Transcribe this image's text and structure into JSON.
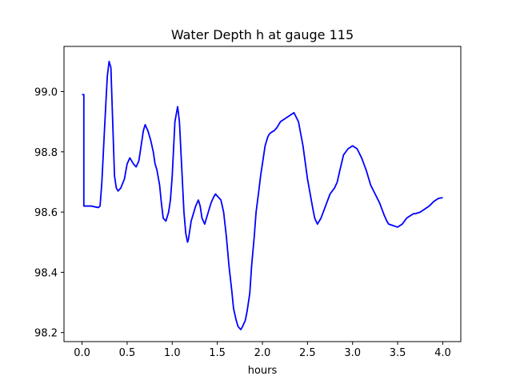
{
  "chart_data": {
    "type": "line",
    "title": "Water Depth h at gauge 115",
    "xlabel": "hours",
    "ylabel": "",
    "xlim": [
      -0.2,
      4.2
    ],
    "ylim": [
      98.17,
      99.15
    ],
    "grid": false,
    "legend": "none",
    "xticks": [
      0.0,
      0.5,
      1.0,
      1.5,
      2.0,
      2.5,
      3.0,
      3.5,
      4.0
    ],
    "xtick_labels": [
      "0.0",
      "0.5",
      "1.0",
      "1.5",
      "2.0",
      "2.5",
      "3.0",
      "3.5",
      "4.0"
    ],
    "yticks": [
      98.2,
      98.4,
      98.6,
      98.8,
      99.0
    ],
    "ytick_labels": [
      "98.2",
      "98.4",
      "98.6",
      "98.8",
      "99.0"
    ],
    "series": [
      {
        "color": "#0000ff",
        "x": [
          0.0,
          0.02,
          0.02,
          0.1,
          0.18,
          0.2,
          0.22,
          0.25,
          0.28,
          0.3,
          0.32,
          0.34,
          0.36,
          0.38,
          0.4,
          0.43,
          0.47,
          0.5,
          0.53,
          0.57,
          0.6,
          0.63,
          0.66,
          0.68,
          0.7,
          0.73,
          0.76,
          0.79,
          0.81,
          0.83,
          0.86,
          0.88,
          0.9,
          0.93,
          0.96,
          0.98,
          1.0,
          1.03,
          1.06,
          1.08,
          1.1,
          1.13,
          1.15,
          1.17,
          1.18,
          1.19,
          1.21,
          1.23,
          1.26,
          1.29,
          1.31,
          1.33,
          1.36,
          1.39,
          1.43,
          1.46,
          1.48,
          1.51,
          1.54,
          1.57,
          1.6,
          1.63,
          1.66,
          1.68,
          1.71,
          1.73,
          1.76,
          1.78,
          1.81,
          1.83,
          1.86,
          1.88,
          1.91,
          1.93,
          1.96,
          1.98,
          2.01,
          2.03,
          2.06,
          2.08,
          2.1,
          2.13,
          2.16,
          2.2,
          2.25,
          2.3,
          2.35,
          2.4,
          2.45,
          2.5,
          2.53,
          2.56,
          2.58,
          2.61,
          2.65,
          2.7,
          2.75,
          2.8,
          2.83,
          2.86,
          2.9,
          2.95,
          3.0,
          3.05,
          3.1,
          3.15,
          3.18,
          3.2,
          3.25,
          3.3,
          3.35,
          3.38,
          3.4,
          3.45,
          3.5,
          3.55,
          3.6,
          3.65,
          3.68,
          3.7,
          3.75,
          3.8,
          3.85,
          3.9,
          3.95,
          4.0
        ],
        "y": [
          98.99,
          98.99,
          98.62,
          98.62,
          98.615,
          98.62,
          98.7,
          98.88,
          99.05,
          99.1,
          99.08,
          98.9,
          98.72,
          98.68,
          98.67,
          98.68,
          98.71,
          98.76,
          98.78,
          98.76,
          98.75,
          98.77,
          98.83,
          98.87,
          98.89,
          98.87,
          98.84,
          98.8,
          98.76,
          98.74,
          98.69,
          98.63,
          98.58,
          98.57,
          98.6,
          98.64,
          98.72,
          98.9,
          98.95,
          98.9,
          98.78,
          98.6,
          98.53,
          98.5,
          98.51,
          98.53,
          98.57,
          98.59,
          98.62,
          98.64,
          98.62,
          98.58,
          98.56,
          98.59,
          98.63,
          98.65,
          98.66,
          98.65,
          98.64,
          98.6,
          98.52,
          98.42,
          98.34,
          98.28,
          98.24,
          98.22,
          98.21,
          98.22,
          98.24,
          98.27,
          98.33,
          98.42,
          98.52,
          98.6,
          98.67,
          98.72,
          98.78,
          98.82,
          98.85,
          98.86,
          98.865,
          98.87,
          98.88,
          98.9,
          98.91,
          98.92,
          98.93,
          98.9,
          98.82,
          98.71,
          98.66,
          98.61,
          98.58,
          98.56,
          98.58,
          98.62,
          98.66,
          98.68,
          98.7,
          98.74,
          98.79,
          98.81,
          98.82,
          98.81,
          98.78,
          98.74,
          98.71,
          98.69,
          98.66,
          98.63,
          98.59,
          98.57,
          98.56,
          98.555,
          98.55,
          98.56,
          98.58,
          98.59,
          98.595,
          98.595,
          98.6,
          98.61,
          98.62,
          98.635,
          98.645,
          98.648
        ]
      }
    ]
  }
}
